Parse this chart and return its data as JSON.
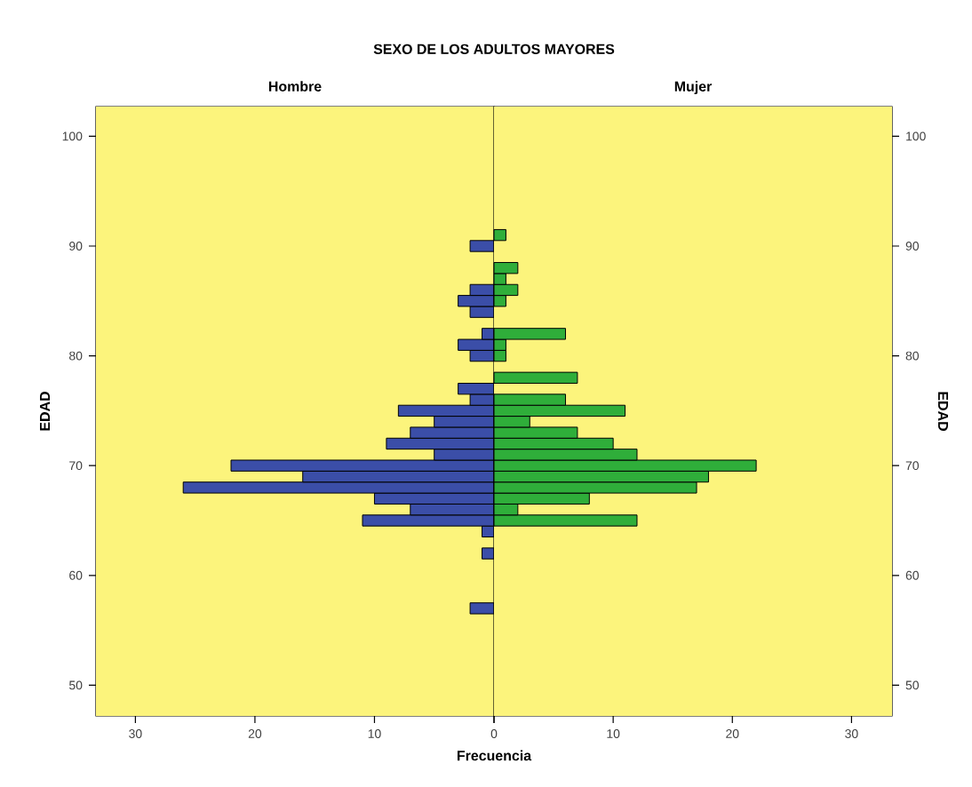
{
  "chart_data": [
    {
      "type": "histogram",
      "orientation": "horizontal",
      "title": "SEXO DE LOS ADULTOS MAYORES",
      "subtitle": "Hombre",
      "xlabel": "Frecuencia",
      "ylabel": "EDAD",
      "color": "#3b4ea8",
      "bins": [
        56.5,
        57.5,
        58.5,
        59.5,
        60.5,
        61.5,
        62.5,
        63.5,
        64.5,
        65.5,
        66.5,
        67.5,
        68.5,
        69.5,
        70.5,
        71.5,
        72.5,
        73.5,
        74.5,
        75.5,
        76.5,
        77.5,
        78.5,
        79.5,
        80.5,
        81.5,
        82.5,
        83.5,
        84.5,
        85.5,
        86.5,
        87.5,
        88.5,
        89.5,
        90.5,
        91.5
      ],
      "values": [
        2,
        0,
        0,
        0,
        0,
        1,
        0,
        1,
        11,
        7,
        10,
        26,
        16,
        22,
        5,
        9,
        7,
        5,
        8,
        2,
        3,
        0,
        0,
        2,
        3,
        1,
        0,
        2,
        3,
        2,
        0,
        0,
        0,
        2,
        0
      ],
      "xlim": [
        33.3,
        0
      ],
      "xticks": [
        30,
        20,
        10,
        {
          "value": 0,
          "label": null
        }
      ],
      "ylim": [
        47.2,
        102.7
      ],
      "yticks": [
        50,
        60,
        70,
        80,
        90,
        100
      ]
    },
    {
      "type": "histogram",
      "orientation": "horizontal",
      "subtitle": "Mujer",
      "ylabel": "EDAD",
      "color": "#2fae3a",
      "bins": [
        56.5,
        57.5,
        58.5,
        59.5,
        60.5,
        61.5,
        62.5,
        63.5,
        64.5,
        65.5,
        66.5,
        67.5,
        68.5,
        69.5,
        70.5,
        71.5,
        72.5,
        73.5,
        74.5,
        75.5,
        76.5,
        77.5,
        78.5,
        79.5,
        80.5,
        81.5,
        82.5,
        83.5,
        84.5,
        85.5,
        86.5,
        87.5,
        88.5,
        89.5,
        90.5,
        91.5
      ],
      "values": [
        0,
        0,
        0,
        0,
        0,
        0,
        0,
        0,
        12,
        2,
        8,
        17,
        18,
        22,
        12,
        10,
        7,
        3,
        11,
        6,
        0,
        7,
        0,
        1,
        1,
        6,
        0,
        0,
        1,
        2,
        1,
        2,
        0,
        0,
        1
      ],
      "xlim": [
        0,
        33.4
      ],
      "xticks": [
        0,
        10,
        20,
        30
      ],
      "ylim": [
        47.2,
        102.7
      ],
      "yticks": [
        50,
        60,
        70,
        80,
        90,
        100
      ]
    }
  ]
}
